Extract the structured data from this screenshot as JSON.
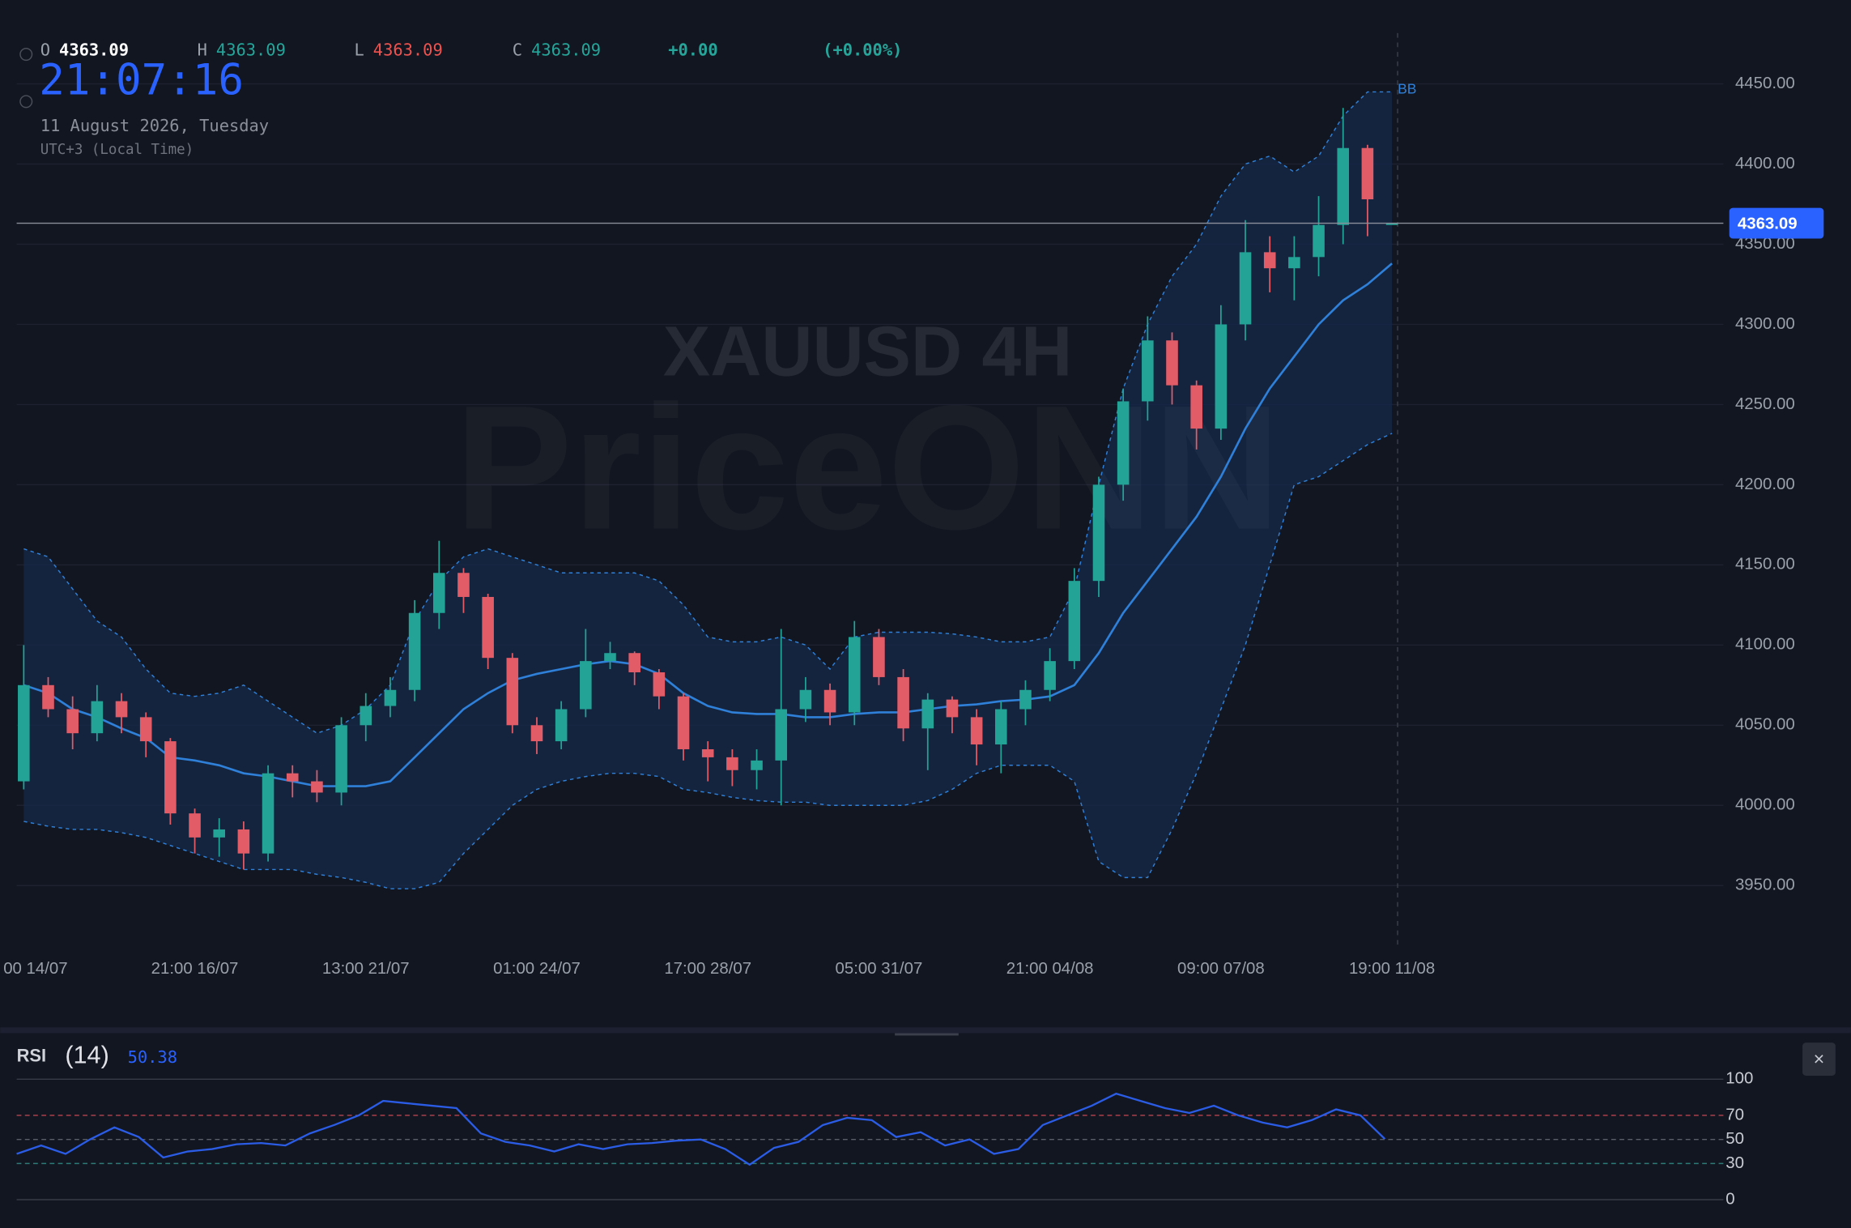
{
  "header": {
    "open_label": "O",
    "open": "4363.09",
    "high_label": "H",
    "high": "4363.09",
    "low_label": "L",
    "low": "4363.09",
    "close_label": "C",
    "close": "4363.09",
    "change": "+0.00",
    "change_pct": "(+0.00%)",
    "clock": "21:07:16",
    "date": "11 August 2026, Tuesday",
    "timezone": "UTC+3 (Local Time)"
  },
  "chart_data": [
    {
      "type": "candlestick",
      "watermark": "XAUUSD 4H",
      "brand": "PriceONN",
      "categories": [
        "00 14/07",
        null,
        null,
        null,
        null,
        null,
        null,
        "21:00 16/07",
        null,
        null,
        null,
        null,
        null,
        null,
        "13:00 21/07",
        null,
        null,
        null,
        null,
        null,
        null,
        "01:00 24/07",
        null,
        null,
        null,
        null,
        null,
        null,
        "17:00 28/07",
        null,
        null,
        null,
        null,
        null,
        null,
        "05:00 31/07",
        null,
        null,
        null,
        null,
        null,
        null,
        "21:00 04/08",
        null,
        null,
        null,
        null,
        null,
        null,
        "09:00 07/08",
        null,
        null,
        null,
        null,
        null,
        null,
        "19:00 11/08"
      ],
      "open": [
        4015,
        4075,
        4060,
        4045,
        4065,
        4055,
        4040,
        3995,
        3980,
        3985,
        3970,
        4020,
        4015,
        4008,
        4050,
        4062,
        4072,
        4120,
        4145,
        4130,
        4092,
        4050,
        4040,
        4060,
        4090,
        4095,
        4083,
        4068,
        4035,
        4030,
        4022,
        4028,
        4060,
        4072,
        4058,
        4105,
        4080,
        4048,
        4066,
        4055,
        4038,
        4060,
        4072,
        4090,
        4140,
        4200,
        4252,
        4290,
        4262,
        4235,
        4300,
        4345,
        4335,
        4342,
        4362,
        4410,
        4363.09
      ],
      "high": [
        4100,
        4080,
        4068,
        4075,
        4070,
        4058,
        4042,
        3998,
        3992,
        3990,
        4025,
        4025,
        4022,
        4055,
        4070,
        4080,
        4128,
        4165,
        4148,
        4132,
        4095,
        4055,
        4065,
        4110,
        4102,
        4096,
        4085,
        4070,
        4040,
        4035,
        4035,
        4110,
        4080,
        4076,
        4115,
        4110,
        4085,
        4070,
        4068,
        4060,
        4065,
        4078,
        4098,
        4148,
        4205,
        4260,
        4305,
        4295,
        4265,
        4312,
        4365,
        4355,
        4355,
        4380,
        4435,
        4412,
        4363.09
      ],
      "low": [
        4010,
        4055,
        4035,
        4040,
        4045,
        4030,
        3988,
        3970,
        3968,
        3960,
        3965,
        4005,
        4002,
        4000,
        4040,
        4055,
        4065,
        4110,
        4120,
        4085,
        4045,
        4032,
        4035,
        4055,
        4085,
        4075,
        4060,
        4028,
        4015,
        4012,
        4010,
        4000,
        4052,
        4050,
        4050,
        4075,
        4040,
        4022,
        4045,
        4025,
        4020,
        4050,
        4065,
        4085,
        4130,
        4190,
        4240,
        4250,
        4222,
        4228,
        4290,
        4320,
        4315,
        4330,
        4350,
        4355,
        4363.09
      ],
      "close": [
        4075,
        4060,
        4045,
        4065,
        4055,
        4040,
        3995,
        3980,
        3985,
        3970,
        4020,
        4015,
        4008,
        4050,
        4062,
        4072,
        4120,
        4145,
        4130,
        4092,
        4050,
        4040,
        4060,
        4090,
        4095,
        4083,
        4068,
        4035,
        4030,
        4022,
        4028,
        4060,
        4072,
        4058,
        4105,
        4080,
        4048,
        4066,
        4055,
        4038,
        4060,
        4072,
        4090,
        4140,
        4200,
        4252,
        4290,
        4262,
        4235,
        4300,
        4345,
        4335,
        4342,
        4362,
        4410,
        4378,
        4363.09
      ],
      "up_color": "#22a396",
      "down_color": "#e25c68",
      "bands": {
        "name": "BB",
        "color": "#2f80d8",
        "fill": "#16294a",
        "upper": [
          4160,
          4155,
          4135,
          4115,
          4105,
          4085,
          4070,
          4068,
          4070,
          4075,
          4065,
          4055,
          4045,
          4050,
          4060,
          4075,
          4115,
          4140,
          4155,
          4160,
          4155,
          4150,
          4145,
          4145,
          4145,
          4145,
          4140,
          4125,
          4105,
          4102,
          4102,
          4105,
          4100,
          4085,
          4105,
          4108,
          4108,
          4108,
          4107,
          4105,
          4102,
          4102,
          4105,
          4135,
          4200,
          4260,
          4300,
          4330,
          4350,
          4380,
          4400,
          4405,
          4395,
          4405,
          4430,
          4445,
          4445
        ],
        "middle": [
          4075,
          4070,
          4060,
          4055,
          4048,
          4042,
          4030,
          4028,
          4025,
          4020,
          4018,
          4015,
          4012,
          4012,
          4012,
          4015,
          4030,
          4045,
          4060,
          4070,
          4078,
          4082,
          4085,
          4088,
          4090,
          4088,
          4082,
          4070,
          4062,
          4058,
          4057,
          4057,
          4055,
          4055,
          4057,
          4058,
          4058,
          4060,
          4062,
          4063,
          4065,
          4066,
          4068,
          4075,
          4095,
          4120,
          4140,
          4160,
          4180,
          4205,
          4235,
          4260,
          4280,
          4300,
          4315,
          4325,
          4338
        ],
        "lower": [
          3990,
          3987,
          3985,
          3985,
          3983,
          3980,
          3975,
          3970,
          3965,
          3960,
          3960,
          3960,
          3957,
          3955,
          3952,
          3948,
          3948,
          3952,
          3970,
          3985,
          4000,
          4010,
          4015,
          4018,
          4020,
          4020,
          4018,
          4010,
          4008,
          4005,
          4003,
          4002,
          4002,
          4000,
          4000,
          4000,
          4000,
          4003,
          4010,
          4020,
          4025,
          4025,
          4025,
          4015,
          3965,
          3955,
          3955,
          3985,
          4020,
          4060,
          4100,
          4150,
          4200,
          4205,
          4215,
          4225,
          4232
        ]
      },
      "ylim": [
        3915,
        4480
      ],
      "yticks": [
        {
          "value": 3950,
          "label": "3950.00"
        },
        {
          "value": 4000,
          "label": "4000.00"
        },
        {
          "value": 4050,
          "label": "4050.00"
        },
        {
          "value": 4100,
          "label": "4100.00"
        },
        {
          "value": 4150,
          "label": "4150.00"
        },
        {
          "value": 4200,
          "label": "4200.00"
        },
        {
          "value": 4250,
          "label": "4250.00"
        },
        {
          "value": 4300,
          "label": "4300.00"
        },
        {
          "value": 4350,
          "label": "4350.00"
        },
        {
          "value": 4400,
          "label": "4400.00"
        },
        {
          "value": 4450,
          "label": "4450.00"
        }
      ],
      "last_price": {
        "value": 4363.09,
        "label": "4363.09"
      },
      "grid": true
    },
    {
      "type": "line",
      "title": "RSI",
      "period": "(14)",
      "color": "#2b5ce6",
      "values": [
        38,
        45,
        38,
        50,
        60,
        52,
        35,
        40,
        42,
        46,
        47,
        45,
        55,
        62,
        70,
        82,
        80,
        78,
        76,
        55,
        48,
        45,
        40,
        46,
        42,
        46,
        47,
        49,
        50,
        42,
        29,
        43,
        48,
        62,
        68,
        66,
        52,
        56,
        45,
        50,
        38,
        42,
        62,
        70,
        78,
        88,
        82,
        76,
        72,
        78,
        70,
        64,
        60,
        66,
        75,
        70,
        50.38
      ],
      "ylim": [
        0,
        100
      ],
      "yticks": [
        0,
        30,
        50,
        70,
        100
      ],
      "tick_colors": [
        "#363b47",
        "#2c7b78",
        "#5a5f6a",
        "#b8434f",
        "#363b47"
      ],
      "tick_dashed": [
        false,
        true,
        true,
        true,
        false
      ],
      "close_button": "×"
    }
  ]
}
